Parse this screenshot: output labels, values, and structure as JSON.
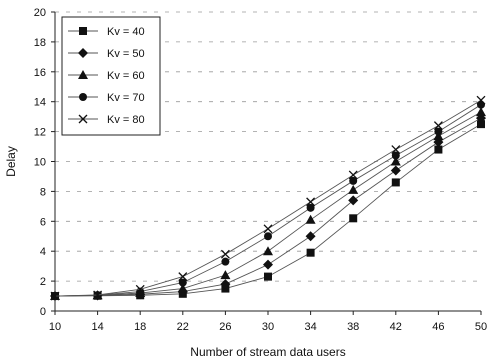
{
  "chart_data": {
    "type": "line",
    "title": "",
    "xlabel": "Number of stream data users",
    "ylabel": "Delay",
    "x": [
      10,
      14,
      18,
      22,
      26,
      30,
      34,
      38,
      42,
      46,
      50
    ],
    "xlim": [
      10,
      50
    ],
    "ylim": [
      0,
      20
    ],
    "yticks": [
      0,
      2,
      4,
      6,
      8,
      10,
      12,
      14,
      16,
      18,
      20
    ],
    "grid": "horizontal dashed",
    "legend_position": "top-left",
    "series": [
      {
        "name": "Kv = 40",
        "marker": "square",
        "values": [
          1.0,
          1.02,
          1.05,
          1.15,
          1.5,
          2.3,
          3.9,
          6.2,
          8.6,
          10.8,
          12.5
        ]
      },
      {
        "name": "Kv = 50",
        "marker": "diamond",
        "values": [
          1.0,
          1.04,
          1.12,
          1.3,
          1.8,
          3.1,
          5.0,
          7.4,
          9.4,
          11.3,
          12.9
        ]
      },
      {
        "name": "Kv = 60",
        "marker": "triangle",
        "values": [
          1.0,
          1.05,
          1.2,
          1.5,
          2.4,
          4.0,
          6.1,
          8.1,
          10.0,
          11.7,
          13.3
        ]
      },
      {
        "name": "Kv = 70",
        "marker": "circle",
        "values": [
          1.0,
          1.06,
          1.3,
          1.9,
          3.3,
          5.0,
          6.9,
          8.7,
          10.4,
          12.0,
          13.8
        ]
      },
      {
        "name": "Kv = 80",
        "marker": "x",
        "values": [
          1.0,
          1.07,
          1.45,
          2.3,
          3.8,
          5.5,
          7.3,
          9.1,
          10.8,
          12.4,
          14.1
        ]
      }
    ]
  }
}
